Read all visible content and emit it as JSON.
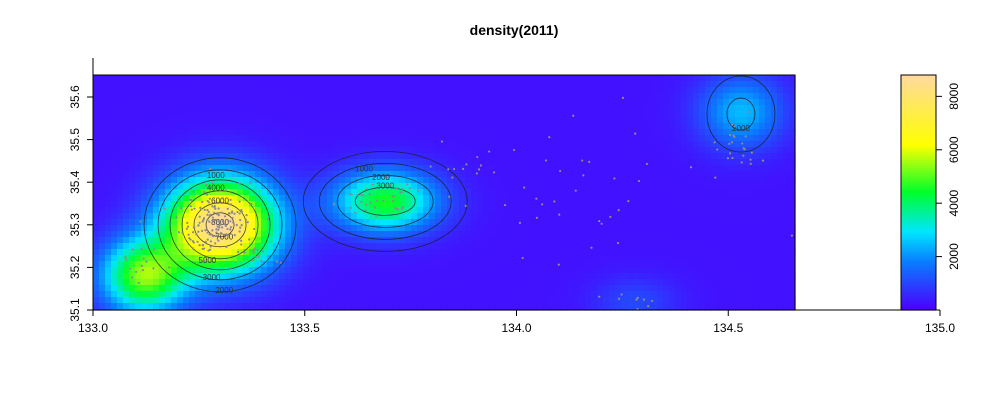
{
  "chart_data": {
    "type": "heatmap",
    "title": "density(2011)",
    "xlabel": "",
    "ylabel": "",
    "xlim": [
      133.0,
      134.65
    ],
    "ylim": [
      35.1,
      35.65
    ],
    "x_ticks": [
      "133.0",
      "133.5",
      "134.0",
      "134.5",
      "135.0"
    ],
    "y_ticks": [
      "35.1",
      "35.2",
      "35.3",
      "35.4",
      "35.5",
      "35.6"
    ],
    "colorbar": {
      "range": [
        0,
        8800
      ],
      "ticks": [
        "2000",
        "4000",
        "6000",
        "8000"
      ],
      "colors": [
        "#4b00ff",
        "#0a7bff",
        "#00e5ff",
        "#00ff2a",
        "#ffff00",
        "#ffd9a0"
      ]
    },
    "peaks": [
      {
        "x": 133.3,
        "y": 35.3,
        "value": 8700
      },
      {
        "x": 133.12,
        "y": 35.18,
        "value": 5000
      },
      {
        "x": 133.69,
        "y": 35.355,
        "value": 4300
      },
      {
        "x": 134.53,
        "y": 35.565,
        "value": 2200
      },
      {
        "x": 134.28,
        "y": 35.12,
        "value": 800
      }
    ],
    "contour_labels": [
      {
        "text": "1000",
        "x": 133.29,
        "y": 35.41
      },
      {
        "text": "4000",
        "x": 133.29,
        "y": 35.38
      },
      {
        "text": "6000",
        "x": 133.3,
        "y": 35.35
      },
      {
        "text": "8000",
        "x": 133.3,
        "y": 35.3
      },
      {
        "text": "7000",
        "x": 133.31,
        "y": 35.265
      },
      {
        "text": "5000",
        "x": 133.27,
        "y": 35.21
      },
      {
        "text": "3000",
        "x": 133.28,
        "y": 35.17
      },
      {
        "text": "2000",
        "x": 133.31,
        "y": 35.14
      },
      {
        "text": "1000",
        "x": 133.64,
        "y": 35.425
      },
      {
        "text": "2000",
        "x": 133.68,
        "y": 35.405
      },
      {
        "text": "3000",
        "x": 133.69,
        "y": 35.385
      },
      {
        "text": "2000",
        "x": 134.53,
        "y": 35.52
      }
    ],
    "point_clusters": [
      {
        "x": 133.29,
        "y": 35.31,
        "sx": 0.045,
        "sy": 0.04,
        "n": 150
      },
      {
        "x": 133.38,
        "y": 35.23,
        "sx": 0.03,
        "sy": 0.02,
        "n": 12
      },
      {
        "x": 133.1,
        "y": 35.2,
        "sx": 0.03,
        "sy": 0.02,
        "n": 15
      },
      {
        "x": 133.68,
        "y": 35.36,
        "sx": 0.05,
        "sy": 0.02,
        "n": 35
      },
      {
        "x": 133.88,
        "y": 35.42,
        "sx": 0.04,
        "sy": 0.03,
        "n": 15
      },
      {
        "x": 134.53,
        "y": 35.48,
        "sx": 0.03,
        "sy": 0.03,
        "n": 20
      },
      {
        "x": 134.28,
        "y": 35.12,
        "sx": 0.03,
        "sy": 0.01,
        "n": 10
      },
      {
        "x": 134.2,
        "y": 35.35,
        "sx": 0.2,
        "sy": 0.12,
        "n": 40
      }
    ]
  }
}
